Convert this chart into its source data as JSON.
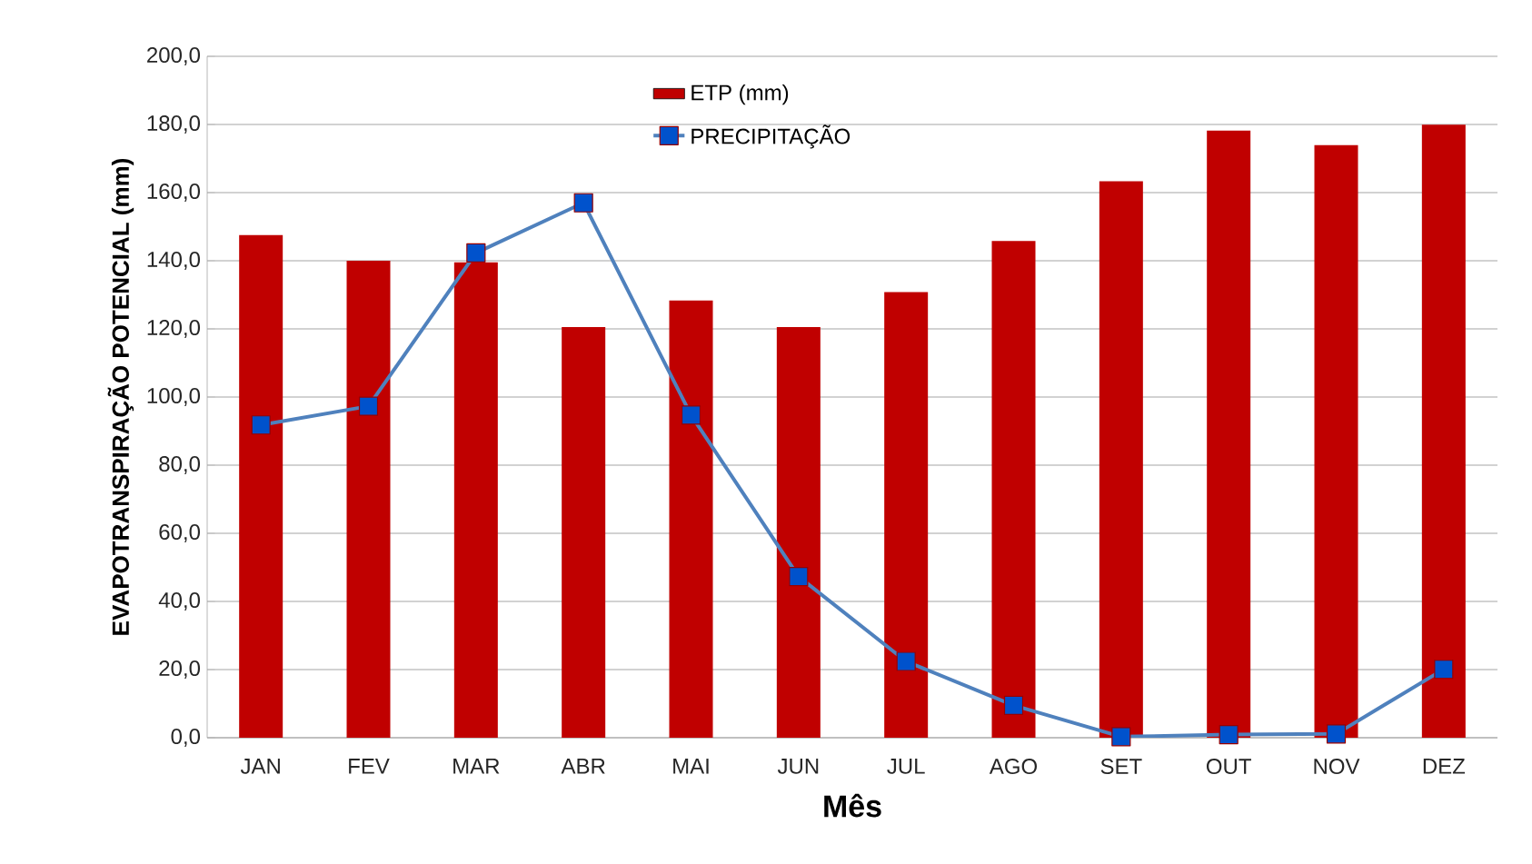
{
  "chart_data": {
    "type": "bar",
    "xlabel": "Mês",
    "ylabel": "EVAPOTRANSPIRAÇÃO POTENCIAL (mm)",
    "categories": [
      "JAN",
      "FEV",
      "MAR",
      "ABR",
      "MAI",
      "JUN",
      "JUL",
      "AGO",
      "SET",
      "OUT",
      "NOV",
      "DEZ"
    ],
    "series": [
      {
        "name": "ETP (mm)",
        "color": "#c00000",
        "values": [
          147.5,
          140.0,
          139.5,
          120.5,
          128.3,
          120.5,
          130.8,
          145.8,
          163.3,
          178.2,
          173.9,
          179.9
        ]
      },
      {
        "name": "PRECIPITAÇÃO",
        "type": "line",
        "color": "#4f81bd",
        "marker": "square",
        "values": [
          91.8,
          97.3,
          142.3,
          157.0,
          94.7,
          47.3,
          22.4,
          9.5,
          0.3,
          0.9,
          1.1,
          20.1
        ]
      }
    ],
    "ylim": [
      0,
      200
    ],
    "yticks": [
      {
        "value": 0,
        "label": "0,0"
      },
      {
        "value": 20,
        "label": "20,0"
      },
      {
        "value": 40,
        "label": "40,0"
      },
      {
        "value": 60,
        "label": "60,0"
      },
      {
        "value": 80,
        "label": "80,0"
      },
      {
        "value": 100,
        "label": "100,0"
      },
      {
        "value": 120,
        "label": "120,0"
      },
      {
        "value": 140,
        "label": "140,0"
      },
      {
        "value": 160,
        "label": "160,0"
      },
      {
        "value": 180,
        "label": "180,0"
      },
      {
        "value": 200,
        "label": "200,0"
      }
    ],
    "grid": "y",
    "legend": "top"
  }
}
